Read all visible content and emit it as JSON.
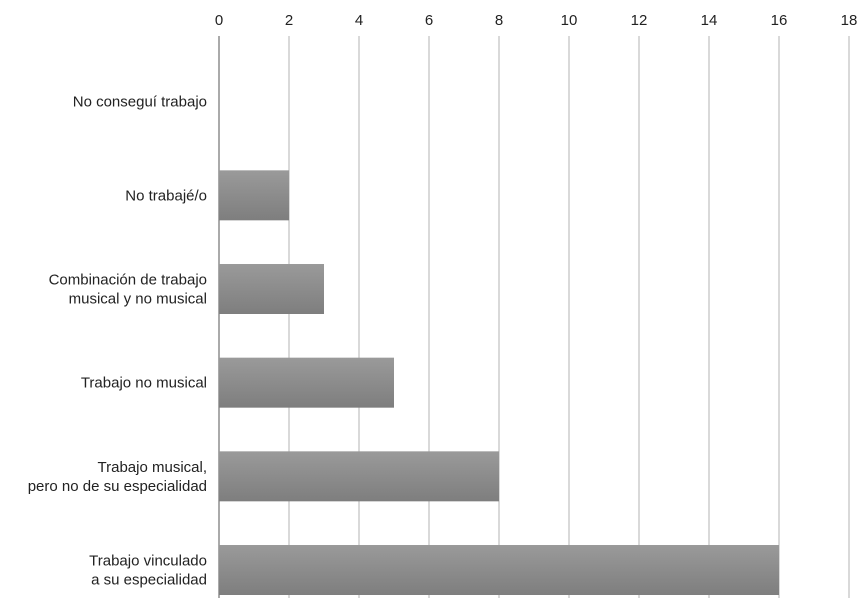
{
  "chart_data": {
    "type": "bar",
    "orientation": "horizontal",
    "categories": [
      [
        "No conseguí trabajo"
      ],
      [
        "No trabajé/o"
      ],
      [
        "Combinación de trabajo",
        "musical y no musical"
      ],
      [
        "Trabajo no musical"
      ],
      [
        "Trabajo musical,",
        "pero no de su especialidad"
      ],
      [
        "Trabajo vinculado",
        "a su especialidad"
      ]
    ],
    "values": [
      0,
      2,
      3,
      5,
      8,
      16
    ],
    "xlim": [
      0,
      18
    ],
    "xticks": [
      "0",
      "2",
      "4",
      "6",
      "8",
      "10",
      "12",
      "14",
      "16",
      "18"
    ],
    "x_axis_position": "top",
    "grid": true,
    "bar_color": "#8a8a8a",
    "grid_color": "#d9d9d9"
  }
}
